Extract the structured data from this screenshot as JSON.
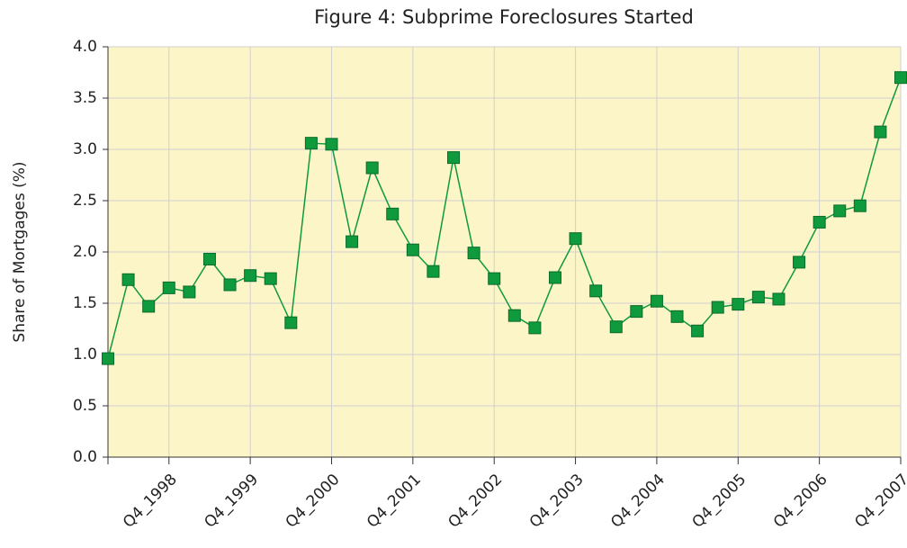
{
  "chart_data": {
    "type": "line",
    "title": "Figure 4: Subprime Foreclosures Started",
    "y_label": "Share of Mortgages (%)",
    "categories": [
      null,
      null,
      null,
      "Q4_1998",
      null,
      null,
      null,
      "Q4_1999",
      null,
      null,
      null,
      "Q4_2000",
      null,
      null,
      null,
      "Q4_2001",
      null,
      null,
      null,
      "Q4_2002",
      null,
      null,
      null,
      "Q4_2003",
      null,
      null,
      null,
      "Q4_2004",
      null,
      null,
      null,
      "Q4_2005",
      null,
      null,
      null,
      "Q4_2006",
      null,
      null,
      null,
      "Q4_2007"
    ],
    "series": [
      {
        "name": "Subprime Foreclosures Started",
        "color": "#0f9a3e",
        "values": [
          0.96,
          1.73,
          1.47,
          1.65,
          1.61,
          1.93,
          1.68,
          1.77,
          1.74,
          1.31,
          3.06,
          3.05,
          2.1,
          2.82,
          2.37,
          2.02,
          1.81,
          2.92,
          1.99,
          1.74,
          1.38,
          1.26,
          1.75,
          2.13,
          1.62,
          1.27,
          1.42,
          1.52,
          1.37,
          1.23,
          1.46,
          1.49,
          1.56,
          1.54,
          1.9,
          2.29,
          2.4,
          2.45,
          3.17,
          3.7
        ]
      }
    ],
    "ylim": [
      0,
      4
    ],
    "yticks": [
      {
        "value": 0,
        "label": "0.0"
      },
      {
        "value": 0.5,
        "label": "0.5"
      },
      {
        "value": 1,
        "label": "1.0"
      },
      {
        "value": 1.5,
        "label": "1.5"
      },
      {
        "value": 2,
        "label": "2.0"
      },
      {
        "value": 2.5,
        "label": "2.5"
      },
      {
        "value": 3,
        "label": "3.0"
      },
      {
        "value": 3.5,
        "label": "3.5"
      },
      {
        "value": 4,
        "label": "4.0"
      }
    ],
    "grid": true,
    "background": "#fcf5c8"
  }
}
